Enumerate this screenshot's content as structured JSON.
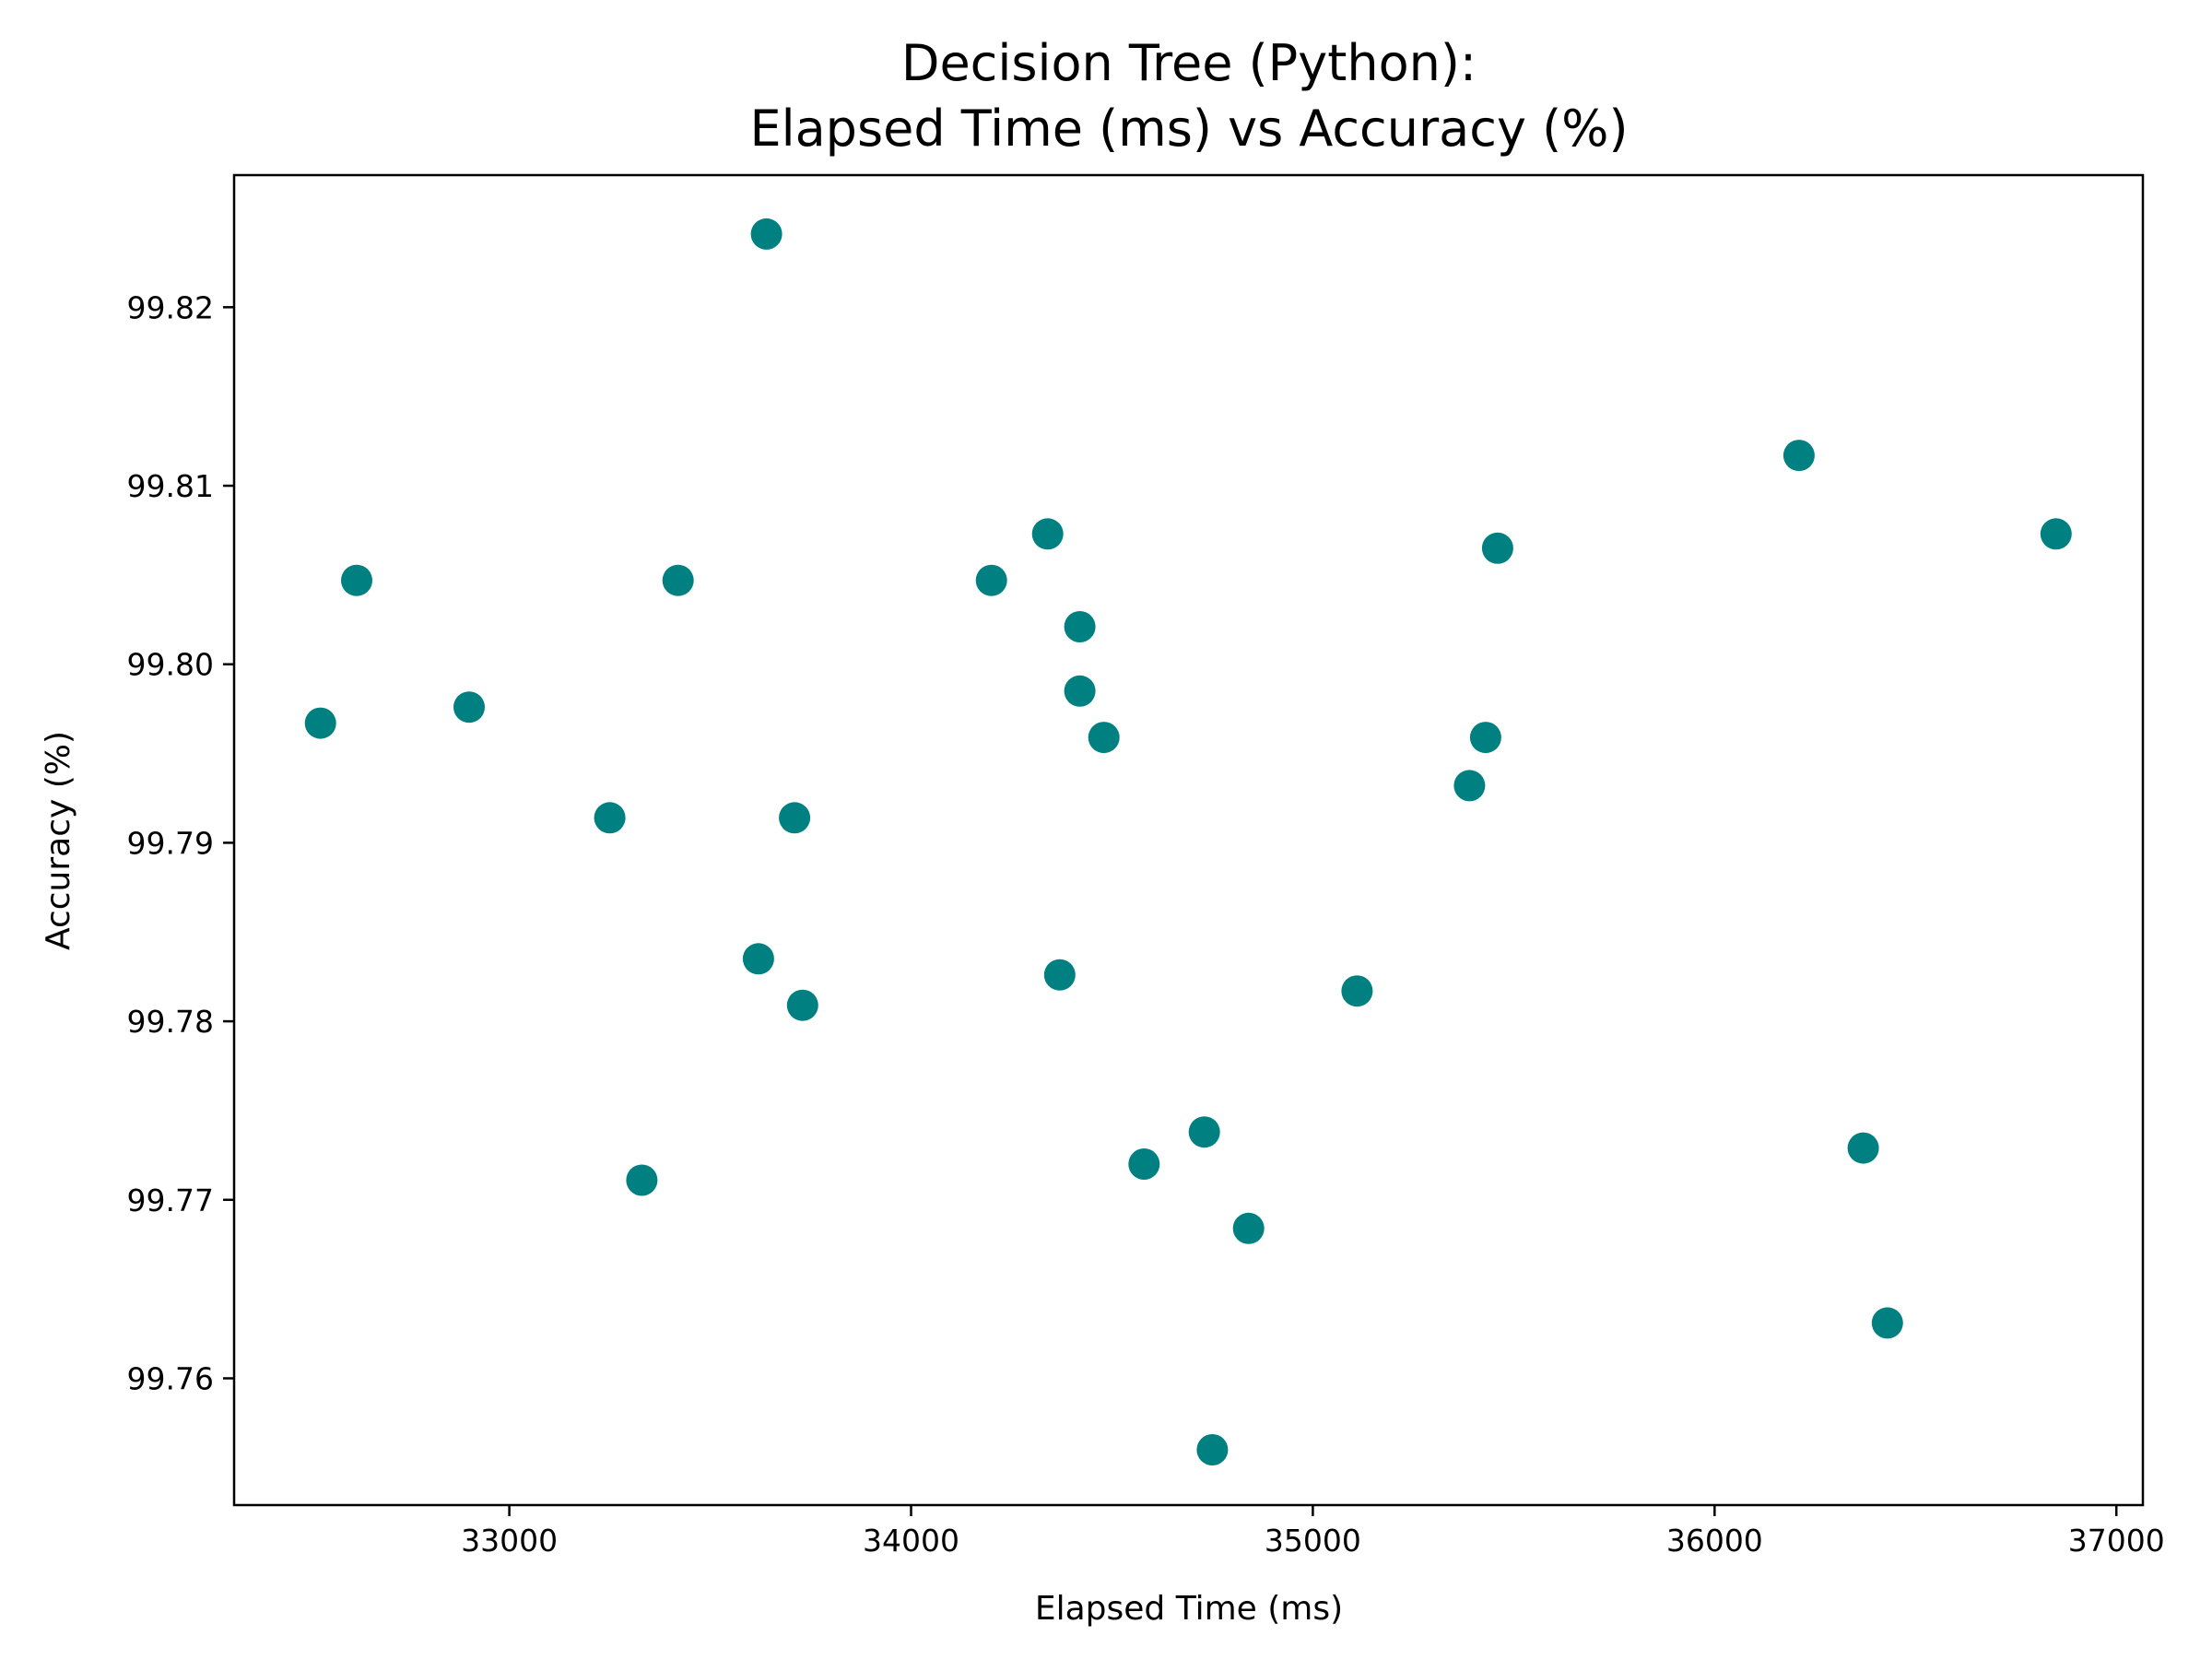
{
  "chart_data": {
    "type": "scatter",
    "title_lines": [
      "Decision Tree (Python):",
      "Elapsed Time (ms) vs Accuracy (%)"
    ],
    "xlabel": "Elapsed Time (ms)",
    "ylabel": "Accuracy (%)",
    "xlim": [
      32315,
      37066
    ],
    "ylim": [
      99.7529,
      99.8274
    ],
    "x_ticks": [
      33000,
      34000,
      35000,
      36000,
      37000
    ],
    "x_tick_labels": [
      "33000",
      "34000",
      "35000",
      "36000",
      "37000"
    ],
    "y_ticks": [
      99.76,
      99.77,
      99.78,
      99.79,
      99.8,
      99.81,
      99.82
    ],
    "y_tick_labels": [
      "99.76",
      "99.77",
      "99.78",
      "99.79",
      "99.80",
      "99.81",
      "99.82"
    ],
    "grid": false,
    "marker_color": "#008080",
    "points": [
      {
        "x": 33640,
        "y": 99.8241
      },
      {
        "x": 36210,
        "y": 99.8117
      },
      {
        "x": 34340,
        "y": 99.8073
      },
      {
        "x": 36850,
        "y": 99.8073
      },
      {
        "x": 35460,
        "y": 99.8065
      },
      {
        "x": 32620,
        "y": 99.8047
      },
      {
        "x": 33420,
        "y": 99.8047
      },
      {
        "x": 34200,
        "y": 99.8047
      },
      {
        "x": 34420,
        "y": 99.8021
      },
      {
        "x": 32900,
        "y": 99.7976
      },
      {
        "x": 32530,
        "y": 99.7967
      },
      {
        "x": 34420,
        "y": 99.7985
      },
      {
        "x": 34480,
        "y": 99.7959
      },
      {
        "x": 35430,
        "y": 99.7959
      },
      {
        "x": 35390,
        "y": 99.7932
      },
      {
        "x": 33250,
        "y": 99.7914
      },
      {
        "x": 33710,
        "y": 99.7914
      },
      {
        "x": 33620,
        "y": 99.7835
      },
      {
        "x": 34370,
        "y": 99.7826
      },
      {
        "x": 35110,
        "y": 99.7817
      },
      {
        "x": 33730,
        "y": 99.7809
      },
      {
        "x": 34730,
        "y": 99.7738
      },
      {
        "x": 36370,
        "y": 99.7729
      },
      {
        "x": 34580,
        "y": 99.772
      },
      {
        "x": 33330,
        "y": 99.7711
      },
      {
        "x": 34840,
        "y": 99.7684
      },
      {
        "x": 36430,
        "y": 99.7631
      },
      {
        "x": 34750,
        "y": 99.756
      }
    ]
  }
}
